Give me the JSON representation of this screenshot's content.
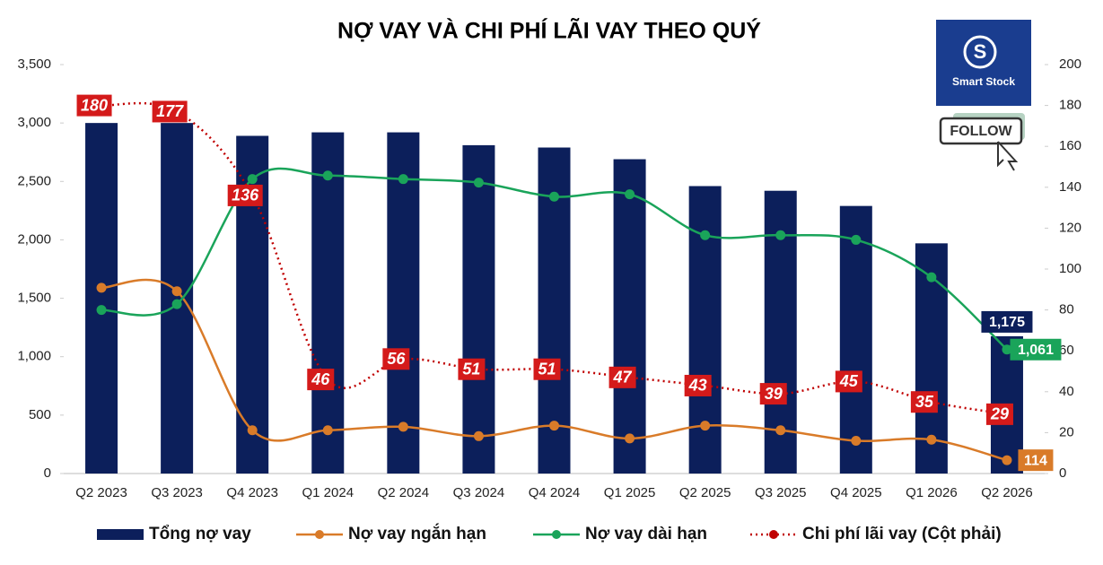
{
  "chart_data": {
    "type": "combo",
    "title": "NỢ VAY VÀ CHI PHÍ LÃI VAY THEO QUÝ",
    "categories": [
      "Q2 2023",
      "Q3 2023",
      "Q4 2023",
      "Q1 2024",
      "Q2 2024",
      "Q3 2024",
      "Q4 2024",
      "Q1 2025",
      "Q2 2025",
      "Q3 2025",
      "Q4 2025",
      "Q1 2026",
      "Q2 2026"
    ],
    "series": [
      {
        "name": "Tổng nợ vay",
        "type": "bar",
        "color": "#0c1f5b",
        "values": [
          3000,
          3000,
          2890,
          2920,
          2920,
          2810,
          2790,
          2690,
          2460,
          2420,
          2290,
          1970,
          1175
        ],
        "value_labels": [
          null,
          null,
          null,
          null,
          null,
          null,
          null,
          null,
          null,
          null,
          null,
          null,
          "1,175"
        ]
      },
      {
        "name": "Nợ vay ngắn hạn",
        "type": "line",
        "color": "#d97b29",
        "values": [
          1590,
          1560,
          370,
          370,
          400,
          320,
          410,
          300,
          410,
          370,
          280,
          290,
          114
        ],
        "value_labels": [
          null,
          null,
          null,
          null,
          null,
          null,
          null,
          null,
          null,
          null,
          null,
          null,
          "114"
        ]
      },
      {
        "name": "Nợ vay dài hạn",
        "type": "line",
        "color": "#1aa45a",
        "values": [
          1400,
          1450,
          2520,
          2550,
          2520,
          2490,
          2370,
          2390,
          2040,
          2040,
          2000,
          1680,
          1061
        ],
        "value_labels": [
          null,
          null,
          null,
          null,
          null,
          null,
          null,
          null,
          null,
          null,
          null,
          null,
          "1,061"
        ]
      },
      {
        "name": "Chi phí lãi vay (Cột phải)",
        "type": "dotted",
        "axis": "y2",
        "color": "#c00000",
        "values": [
          180,
          177,
          136,
          46,
          56,
          51,
          51,
          47,
          43,
          39,
          45,
          35,
          29
        ]
      }
    ],
    "ylim": [
      0,
      3500
    ],
    "yticks": [
      0,
      500,
      {
        "value": 1000,
        "label": "1,000"
      },
      {
        "value": 1500,
        "label": "1,500"
      },
      {
        "value": 2000,
        "label": "2,000"
      },
      {
        "value": 2500,
        "label": "2,500"
      },
      {
        "value": 3000,
        "label": "3,000"
      },
      {
        "value": 3500,
        "label": "3,500"
      }
    ],
    "y2lim": [
      0,
      200
    ],
    "y2ticks": [
      0,
      20,
      40,
      60,
      80,
      100,
      120,
      140,
      160,
      180,
      200
    ],
    "legend": "bottom"
  },
  "logo": {
    "name": "Smart Stock",
    "button": "FOLLOW"
  }
}
